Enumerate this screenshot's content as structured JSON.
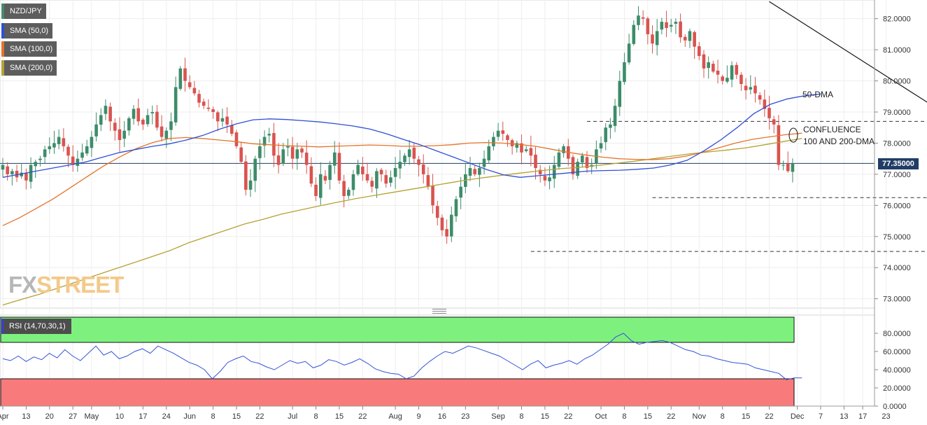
{
  "legend": {
    "pair": "NZD/JPY",
    "sma50": "SMA (50,0)",
    "sma100": "SMA (100,0)",
    "sma200": "SMA (200,0)",
    "rsi": "RSI (14,70,30,1)"
  },
  "colors": {
    "up": "#3d8c6a",
    "down": "#d9534f",
    "sma50": "#2f4fd6",
    "sma100": "#e3742a",
    "sma200": "#b3a233",
    "rsi_line": "#3254d8",
    "overbought": "#7ef07e",
    "oversold": "#f87a7a"
  },
  "logo": {
    "part1": "FX",
    "part2": "STREET"
  },
  "annotations": {
    "dma50": "50-DMA",
    "confluence_line1": "CONFLUENCE",
    "confluence_line2": "100 AND 200-DMA"
  },
  "price_tag": "77.35000",
  "chart_data": {
    "type": "candlestick",
    "title": "NZD/JPY",
    "price_axis": {
      "ylim": [
        72.7,
        82.6
      ],
      "ticks": [
        "82.0000",
        "81.0000",
        "80.0000",
        "79.0000",
        "78.0000",
        "77.0000",
        "76.0000",
        "75.0000",
        "74.0000",
        "73.0000"
      ]
    },
    "rsi_axis": {
      "ylim": [
        0,
        100
      ],
      "ticks": [
        "80.0000",
        "60.0000",
        "40.0000",
        "20.0000",
        "0.0000"
      ],
      "overbought": 70,
      "oversold": 30
    },
    "x_labels": [
      {
        "label": "Apr",
        "i": 0
      },
      {
        "label": "13",
        "i": 5
      },
      {
        "label": "20",
        "i": 10
      },
      {
        "label": "27",
        "i": 15
      },
      {
        "label": "May",
        "i": 19
      },
      {
        "label": "10",
        "i": 25
      },
      {
        "label": "17",
        "i": 30
      },
      {
        "label": "24",
        "i": 35
      },
      {
        "label": "Jun",
        "i": 40
      },
      {
        "label": "8",
        "i": 45
      },
      {
        "label": "15",
        "i": 50
      },
      {
        "label": "22",
        "i": 55
      },
      {
        "label": "Jul",
        "i": 62
      },
      {
        "label": "8",
        "i": 67
      },
      {
        "label": "15",
        "i": 72
      },
      {
        "label": "22",
        "i": 77
      },
      {
        "label": "Aug",
        "i": 84
      },
      {
        "label": "9",
        "i": 89
      },
      {
        "label": "16",
        "i": 94
      },
      {
        "label": "23",
        "i": 99
      },
      {
        "label": "Sep",
        "i": 106
      },
      {
        "label": "8",
        "i": 111
      },
      {
        "label": "15",
        "i": 116
      },
      {
        "label": "22",
        "i": 121
      },
      {
        "label": "Oct",
        "i": 128
      },
      {
        "label": "8",
        "i": 133
      },
      {
        "label": "15",
        "i": 138
      },
      {
        "label": "22",
        "i": 143
      },
      {
        "label": "Nov",
        "i": 149
      },
      {
        "label": "8",
        "i": 154
      },
      {
        "label": "15",
        "i": 159
      },
      {
        "label": "22",
        "i": 164
      },
      {
        "label": "Dec",
        "i": 170
      },
      {
        "label": "7",
        "i": 175
      },
      {
        "label": "13",
        "i": 180
      },
      {
        "label": "17",
        "i": 184
      },
      {
        "label": "23",
        "i": 189
      }
    ],
    "closes": [
      77.3,
      77.0,
      77.1,
      76.9,
      77.05,
      76.8,
      77.3,
      77.4,
      77.5,
      77.8,
      77.9,
      78.0,
      78.2,
      77.9,
      77.6,
      77.3,
      77.5,
      77.7,
      77.9,
      78.2,
      78.6,
      78.9,
      79.2,
      78.7,
      78.4,
      78.1,
      78.4,
      78.8,
      79.1,
      78.7,
      78.6,
      78.9,
      79.0,
      78.5,
      78.2,
      78.4,
      78.7,
      79.8,
      80.4,
      80.0,
      79.8,
      79.6,
      79.3,
      79.2,
      79.1,
      79.0,
      78.7,
      78.8,
      78.6,
      78.3,
      77.9,
      77.4,
      76.5,
      76.8,
      77.5,
      77.9,
      78.2,
      78.3,
      77.6,
      77.3,
      77.8,
      77.9,
      77.5,
      77.8,
      77.7,
      77.3,
      76.7,
      76.3,
      77.0,
      76.8,
      77.3,
      77.7,
      76.8,
      76.3,
      76.5,
      77.0,
      77.3,
      77.0,
      76.8,
      76.6,
      77.1,
      77.0,
      76.7,
      76.9,
      77.2,
      77.4,
      77.6,
      77.8,
      77.5,
      77.3,
      77.0,
      76.6,
      76.0,
      75.6,
      75.2,
      75.0,
      75.7,
      76.2,
      76.6,
      77.0,
      77.2,
      77.0,
      77.2,
      77.5,
      77.9,
      78.2,
      78.4,
      78.3,
      78.1,
      77.9,
      78.0,
      77.7,
      77.8,
      77.6,
      77.2,
      77.0,
      76.8,
      76.9,
      77.3,
      77.7,
      77.9,
      77.5,
      77.0,
      77.4,
      77.6,
      77.2,
      77.3,
      77.8,
      78.0,
      78.5,
      78.6,
      79.2,
      80.0,
      80.6,
      81.2,
      81.8,
      82.1,
      82.0,
      81.5,
      81.2,
      81.6,
      81.9,
      81.7,
      81.8,
      81.9,
      81.4,
      81.3,
      81.6,
      81.1,
      80.8,
      80.4,
      80.6,
      80.3,
      80.2,
      80.0,
      80.1,
      80.5,
      80.2,
      79.9,
      79.7,
      79.8,
      79.6,
      79.4,
      79.1,
      78.8,
      78.6,
      77.3,
      77.3,
      77.1,
      77.35
    ],
    "sma50": [
      76.9,
      77.0,
      77.1,
      77.2,
      77.3,
      77.4,
      77.55,
      77.7,
      77.8,
      77.9,
      77.98,
      78.1,
      78.25,
      78.45,
      78.62,
      78.75,
      78.78,
      78.76,
      78.72,
      78.68,
      78.62,
      78.55,
      78.45,
      78.3,
      78.12,
      77.95,
      77.75,
      77.55,
      77.35,
      77.15,
      76.98,
      76.9,
      76.95,
      77.0,
      77.05,
      77.1,
      77.12,
      77.13,
      77.16,
      77.2,
      77.3,
      77.45,
      77.75,
      78.1,
      78.5,
      78.95,
      79.25,
      79.42,
      79.52,
      79.58
    ],
    "sma50_x0": 0,
    "sma50_x1": 175,
    "sma100": [
      75.35,
      75.6,
      75.9,
      76.2,
      76.55,
      76.9,
      77.25,
      77.55,
      77.82,
      78.02,
      78.15,
      78.18,
      78.15,
      78.1,
      78.05,
      77.98,
      77.95,
      77.92,
      77.9,
      77.88,
      77.9,
      77.92,
      77.94,
      77.93,
      77.9,
      77.9,
      77.92,
      77.95,
      78.0,
      78.02,
      78.0,
      77.96,
      77.9,
      77.8,
      77.7,
      77.62,
      77.55,
      77.5,
      77.48,
      77.47,
      77.5,
      77.58,
      77.7,
      77.85,
      78.0,
      78.12,
      78.2,
      78.27,
      78.32
    ],
    "sma200": [
      72.8,
      72.98,
      73.15,
      73.35,
      73.55,
      73.75,
      73.95,
      74.15,
      74.35,
      74.55,
      74.8,
      75.0,
      75.2,
      75.4,
      75.55,
      75.72,
      75.85,
      75.98,
      76.1,
      76.22,
      76.32,
      76.42,
      76.52,
      76.62,
      76.72,
      76.82,
      76.9,
      76.98,
      77.05,
      77.12,
      77.18,
      77.22,
      77.28,
      77.35,
      77.42,
      77.5,
      77.58,
      77.66,
      77.72,
      77.78,
      77.85,
      77.95,
      78.05,
      78.15
    ],
    "rsi": [
      52,
      50,
      55,
      49,
      54,
      51,
      58,
      53,
      62,
      55,
      50,
      58,
      66,
      56,
      60,
      52,
      55,
      60,
      63,
      58,
      66,
      62,
      58,
      53,
      48,
      45,
      40,
      30,
      38,
      48,
      52,
      55,
      49,
      47,
      43,
      40,
      45,
      50,
      47,
      49,
      42,
      45,
      51,
      49,
      45,
      48,
      52,
      47,
      41,
      38,
      36,
      35,
      30,
      33,
      42,
      49,
      55,
      60,
      58,
      62,
      66,
      64,
      61,
      58,
      55,
      50,
      45,
      40,
      46,
      50,
      42,
      45,
      47,
      50,
      46,
      52,
      56,
      62,
      68,
      76,
      80,
      72,
      68,
      70,
      71,
      72,
      70,
      66,
      62,
      60,
      56,
      55,
      52,
      50,
      48,
      47,
      46,
      42,
      40,
      38,
      36,
      29,
      31,
      31
    ],
    "resistance_line": {
      "from": [
        164,
        82.55
      ],
      "to": [
        199,
        79.2
      ]
    },
    "dashed_levels": [
      {
        "value": 78.7,
        "from_i": 125,
        "to_i": 199
      },
      {
        "value": 76.25,
        "from_i": 139,
        "to_i": 199
      },
      {
        "value": 74.52,
        "from_i": 113,
        "to_i": 199
      }
    ],
    "last_price": 77.35,
    "annotation_texts": [
      "50-DMA",
      "CONFLUENCE",
      "100 AND 200-DMA"
    ]
  }
}
